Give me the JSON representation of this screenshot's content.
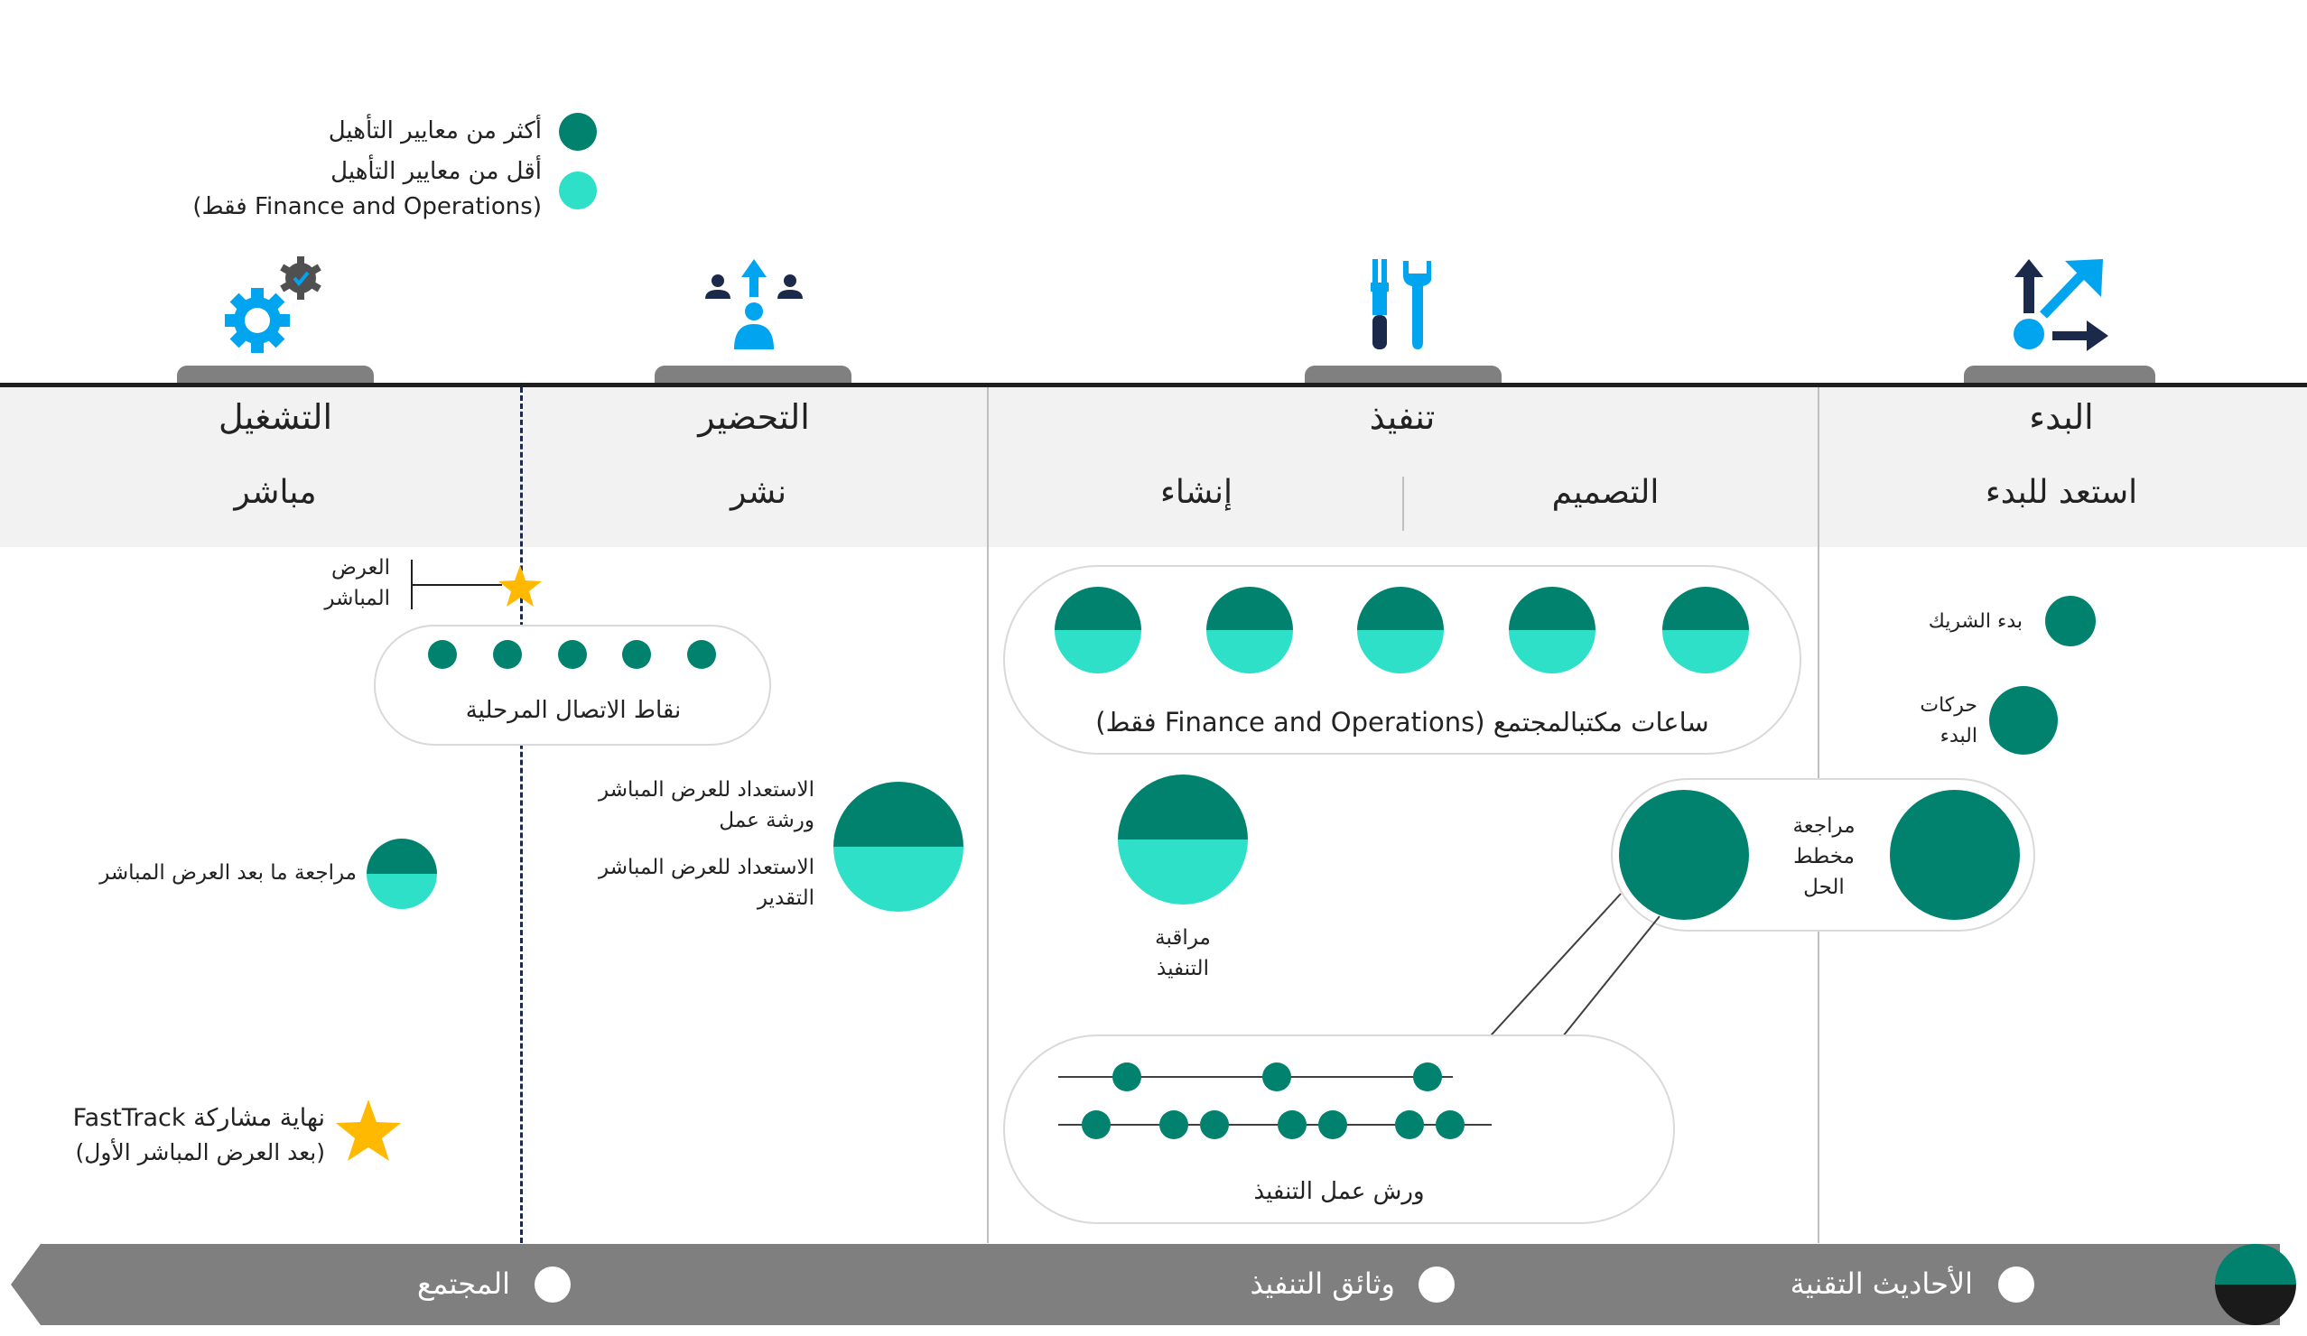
{
  "legend": {
    "above": "أكثر من معايير التأهيل",
    "below": "أقل من معايير التأهيل",
    "below_note": "(Finance and Operations فقط)",
    "colors": {
      "dark": "#00826E",
      "light": "#2EE0C8"
    }
  },
  "phases": {
    "operate": "التشغيل",
    "prepare": "التحضير",
    "implement": "تنفيذ",
    "initiate": "البدء"
  },
  "subphases": {
    "live": "مباشر",
    "deploy": "نشر",
    "build": "إنشاء",
    "design": "التصميم",
    "get_ready": "استعد للبدء"
  },
  "items": {
    "golive": "العرض المباشر",
    "stage_touchpoints": "نقاط الاتصال المرحلية",
    "golive_readiness_workshop": "الاستعداد للعرض المباشر ورشة عمل",
    "golive_readiness_assessment": "الاستعداد للعرض المباشر التقدير",
    "post_golive_review": "مراجعة ما بعد العرض المباشر",
    "fasttrack_end": "نهاية مشاركة FastTrack",
    "fasttrack_end_note": "(بعد العرض المباشر الأول)",
    "community_office_hours": "ساعات مكتبالمجتمع (Finance and Operations فقط)",
    "implementation_review": "مراقبة التنفيذ",
    "implementation_workshops": "ورش عمل التنفيذ",
    "solution_blueprint_review": "مراجعة مخطط الحل",
    "partner_kickoff": "بدء الشريك",
    "kickoff_moves": "حركات البدء"
  },
  "footer": {
    "community": "المجتمع",
    "implementation_docs": "وثائق التنفيذ",
    "tech_talks": "الأحاديث التقنية"
  },
  "colors": {
    "band": "#F2F2F2",
    "footer": "#7F7F7F",
    "accent_blue": "#00A4EF",
    "navy": "#1B2A4A",
    "star": "#FFB900",
    "tab": "#808080"
  }
}
